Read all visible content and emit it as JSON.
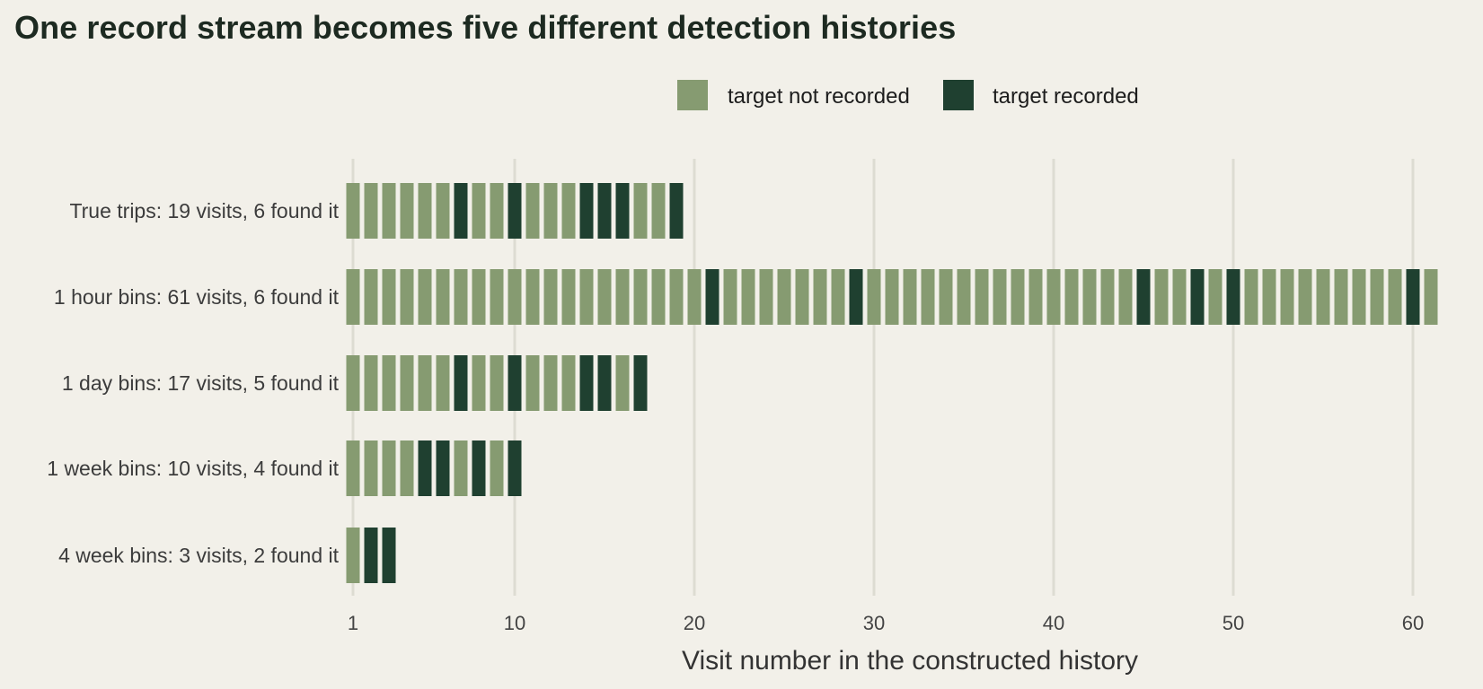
{
  "chart_data": {
    "type": "bar",
    "title": "One record stream becomes five different detection histories",
    "xlabel": "Visit number in the constructed history",
    "ylabel": "",
    "xlim": [
      1,
      61
    ],
    "x_ticks": [
      1,
      10,
      20,
      30,
      40,
      50,
      60
    ],
    "grid": "vertical",
    "legend": {
      "placement": "top",
      "items": [
        {
          "key": "not_recorded",
          "label": "target not recorded",
          "color": "#869b71"
        },
        {
          "key": "recorded",
          "label": "target recorded",
          "color": "#1f4030"
        }
      ]
    },
    "categories": [
      "True trips: 19 visits, 6 found it",
      "1 hour bins: 61 visits, 6 found it",
      "1 day bins: 17 visits, 5 found it",
      "1 week bins: 10 visits, 4 found it",
      "4 week bins: 3 visits, 2 found it"
    ],
    "series": [
      {
        "visits": 19,
        "recorded_visits": [
          7,
          10,
          14,
          15,
          16,
          19
        ]
      },
      {
        "visits": 61,
        "recorded_visits": [
          21,
          29,
          45,
          48,
          50,
          60
        ]
      },
      {
        "visits": 17,
        "recorded_visits": [
          7,
          10,
          14,
          15,
          17
        ]
      },
      {
        "visits": 10,
        "recorded_visits": [
          5,
          6,
          8,
          10
        ]
      },
      {
        "visits": 3,
        "recorded_visits": [
          2,
          3
        ]
      }
    ]
  }
}
